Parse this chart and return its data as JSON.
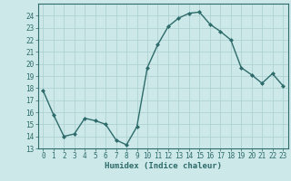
{
  "x": [
    0,
    1,
    2,
    3,
    4,
    5,
    6,
    7,
    8,
    9,
    10,
    11,
    12,
    13,
    14,
    15,
    16,
    17,
    18,
    19,
    20,
    21,
    22,
    23
  ],
  "y": [
    17.8,
    15.8,
    14.0,
    14.2,
    15.5,
    15.3,
    15.0,
    13.7,
    13.3,
    14.8,
    19.7,
    21.6,
    23.1,
    23.8,
    24.2,
    24.3,
    23.3,
    22.7,
    22.0,
    19.7,
    19.1,
    18.4,
    19.2,
    18.2
  ],
  "line_color": "#2e6b6b",
  "marker": "D",
  "marker_size": 2,
  "line_width": 1.0,
  "bg_color": "#cce8e8",
  "grid_color": "#aacece",
  "xlabel": "Humidex (Indice chaleur)",
  "xlim": [
    -0.5,
    23.5
  ],
  "ylim": [
    13,
    25
  ],
  "yticks": [
    13,
    14,
    15,
    16,
    17,
    18,
    19,
    20,
    21,
    22,
    23,
    24
  ],
  "xticks": [
    0,
    1,
    2,
    3,
    4,
    5,
    6,
    7,
    8,
    9,
    10,
    11,
    12,
    13,
    14,
    15,
    16,
    17,
    18,
    19,
    20,
    21,
    22,
    23
  ],
  "tick_color": "#2e6b6b",
  "label_fontsize": 6.5,
  "tick_fontsize": 5.5,
  "spine_color": "#2e6b6b"
}
